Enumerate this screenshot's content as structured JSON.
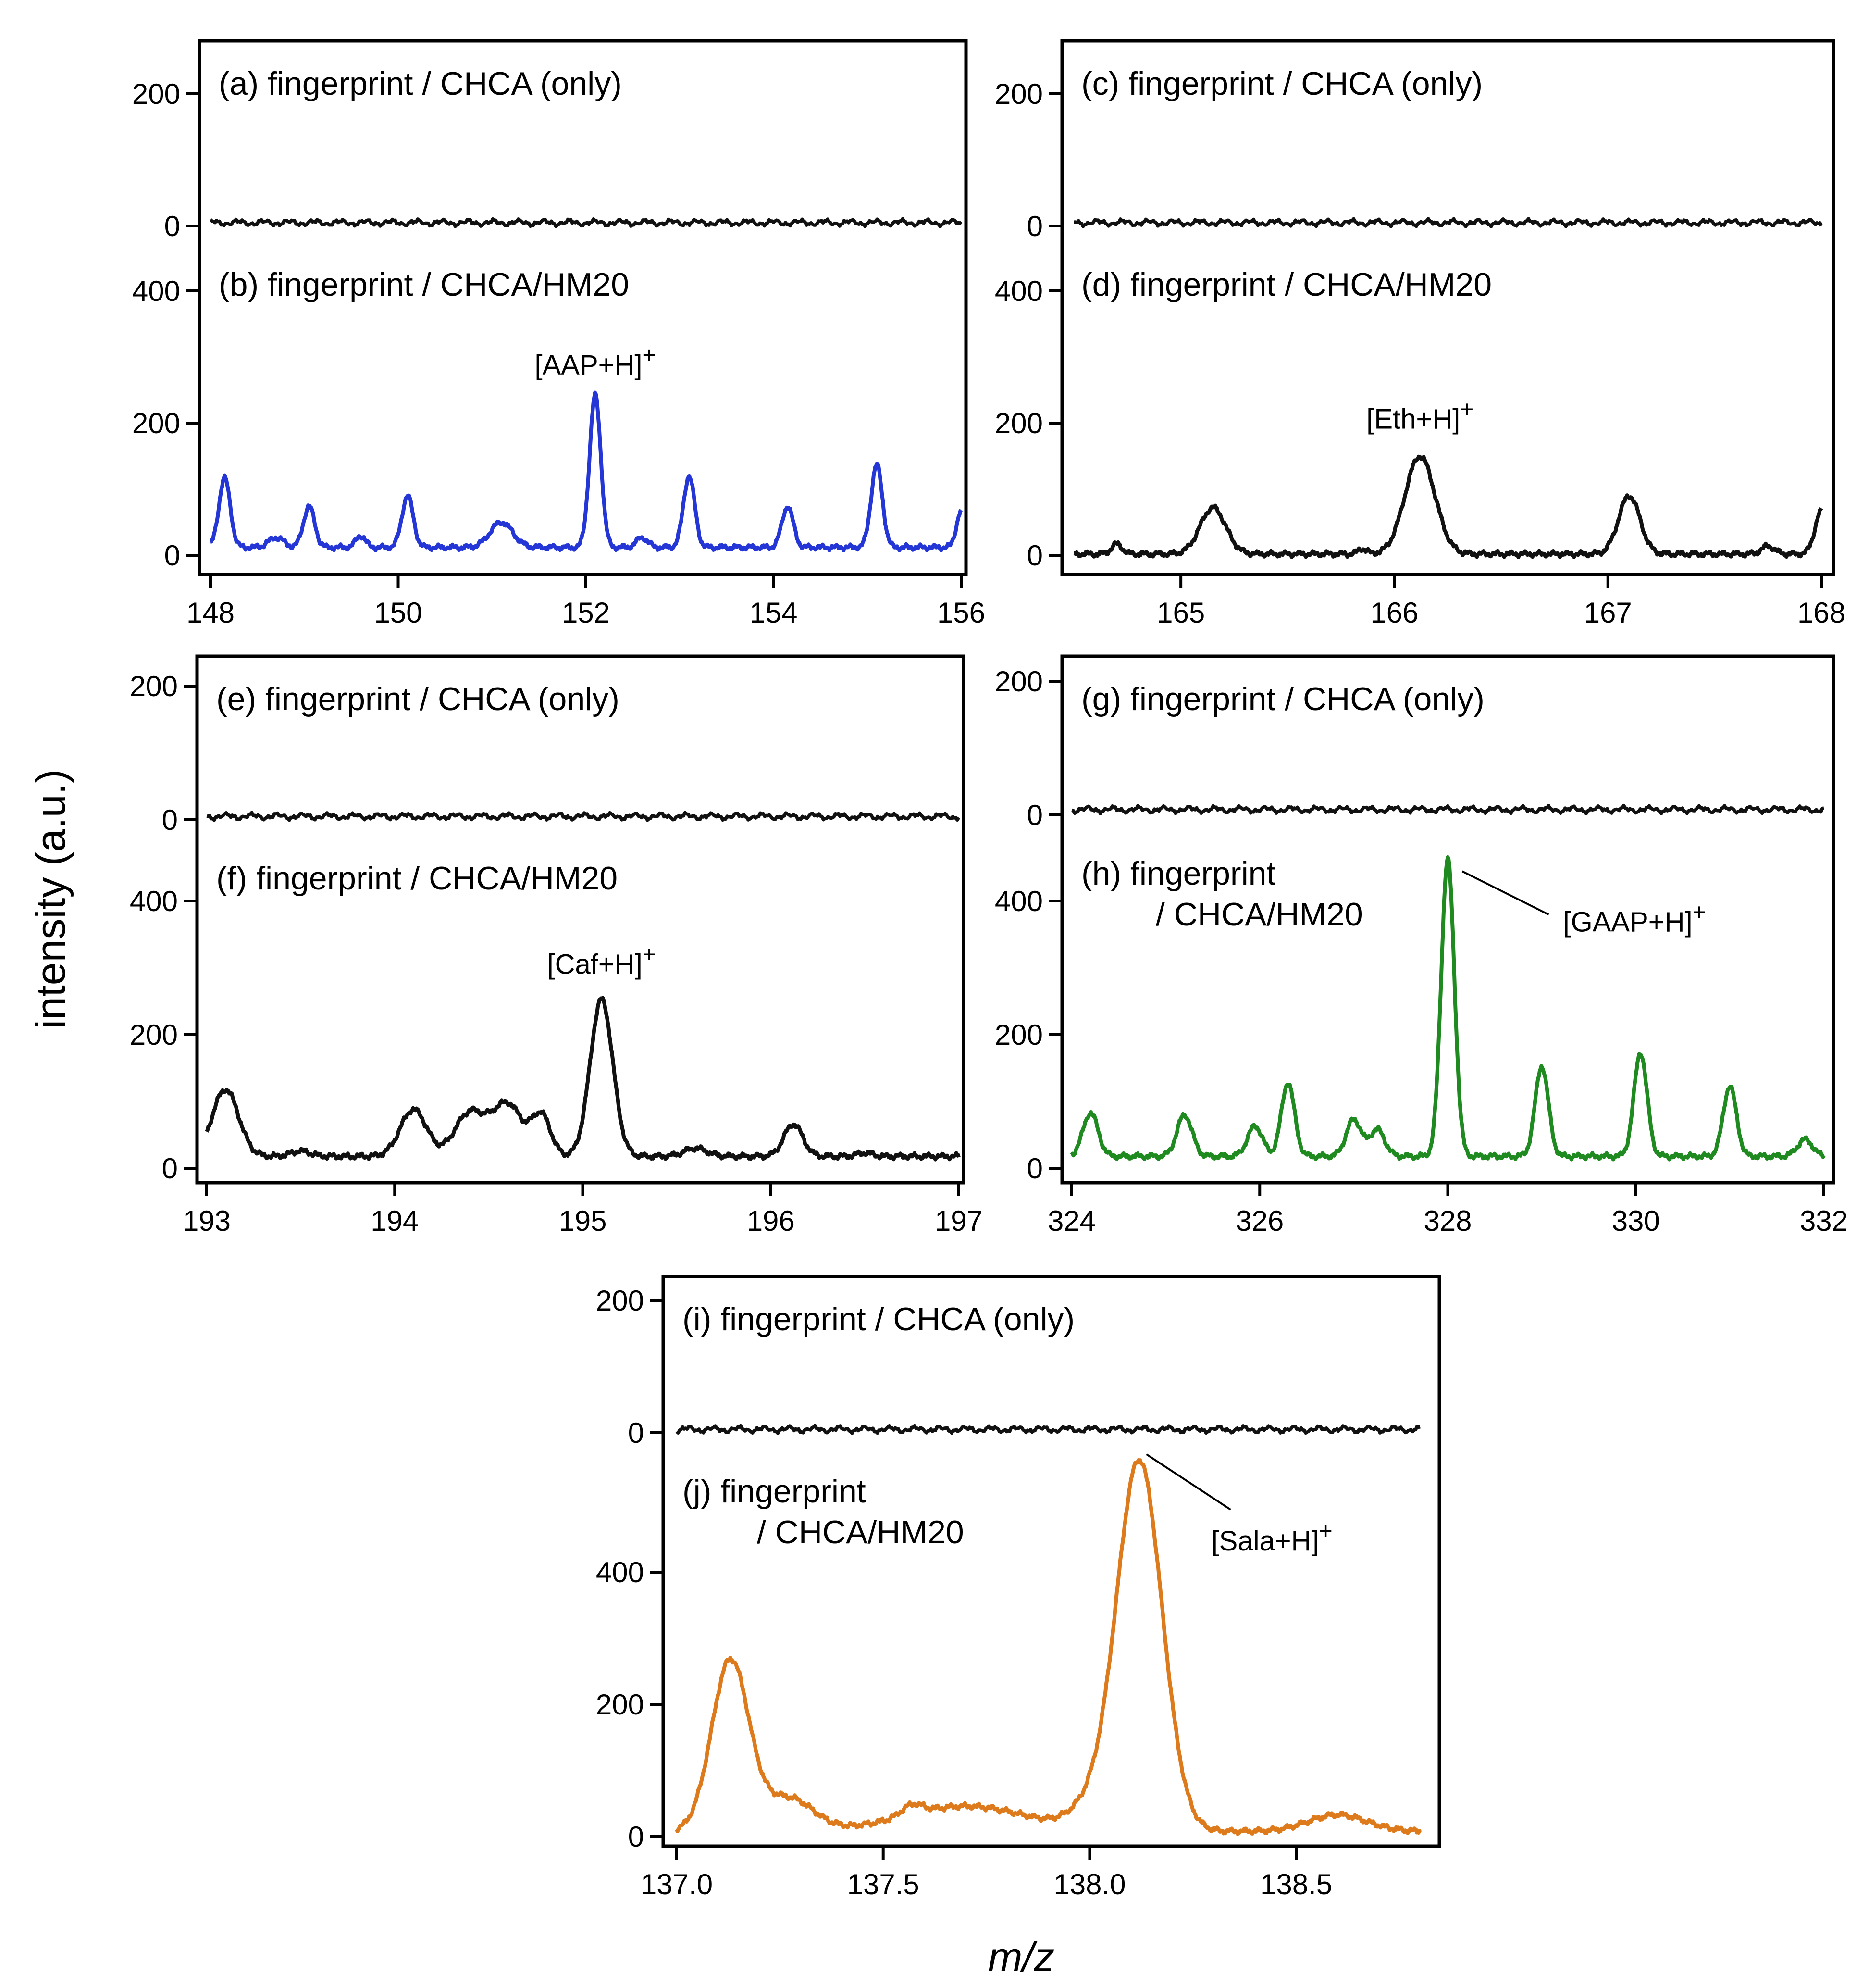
{
  "figure": {
    "ylabel": "intensity (a.u.)",
    "xlabel": "m/z"
  },
  "colors": {
    "blue": "#2436d6",
    "green": "#1f8a1f",
    "orange": "#dd7a1c",
    "black": "#111111"
  },
  "chart_data": [
    {
      "id": "AB",
      "type": "line",
      "xlim": [
        148,
        156
      ],
      "xticks": [
        "148",
        "150",
        "152",
        "154",
        "156"
      ],
      "xtick_values": [
        148,
        150,
        152,
        154,
        156
      ],
      "top": {
        "label": "(a) fingerprint / CHCA (only)",
        "ylim": [
          0,
          200
        ],
        "yticks": [
          0,
          200
        ],
        "color": "black",
        "baseline": 5
      },
      "bottom": {
        "label": "(b) fingerprint / CHCA/HM20",
        "ylim": [
          0,
          400
        ],
        "yticks": [
          0,
          200,
          400
        ],
        "color": "blue",
        "baseline": 12,
        "peaks": [
          [
            148.15,
            105,
            0.06
          ],
          [
            148.7,
            15,
            0.08
          ],
          [
            149.05,
            62,
            0.06
          ],
          [
            149.6,
            18,
            0.05
          ],
          [
            150.1,
            78,
            0.06
          ],
          [
            151.1,
            38,
            0.12
          ],
          [
            152.1,
            230,
            0.06
          ],
          [
            152.6,
            15,
            0.06
          ],
          [
            153.1,
            108,
            0.06
          ],
          [
            154.15,
            62,
            0.06
          ],
          [
            155.1,
            125,
            0.06
          ],
          [
            156.0,
            55,
            0.05
          ]
        ],
        "annotation": {
          "base": "[AAP+H]",
          "sup": "+",
          "x": 152.1,
          "y": 230
        }
      }
    },
    {
      "id": "CD",
      "type": "line",
      "xlim": [
        164.5,
        168
      ],
      "xticks": [
        "165",
        "166",
        "167",
        "168"
      ],
      "xtick_values": [
        165,
        166,
        167,
        168
      ],
      "top": {
        "label": "(c) fingerprint / CHCA (only)",
        "ylim": [
          0,
          200
        ],
        "yticks": [
          0,
          200
        ],
        "color": "black",
        "baseline": 5
      },
      "bottom": {
        "label": "(d) fingerprint / CHCA/HM20",
        "ylim": [
          0,
          400
        ],
        "yticks": [
          0,
          200,
          400
        ],
        "color": "black",
        "baseline": 2,
        "peaks": [
          [
            164.7,
            15,
            0.025
          ],
          [
            165.15,
            70,
            0.06
          ],
          [
            165.85,
            8,
            0.02
          ],
          [
            166.12,
            148,
            0.07
          ],
          [
            167.1,
            88,
            0.05
          ],
          [
            167.75,
            12,
            0.03
          ],
          [
            168.0,
            65,
            0.03
          ]
        ],
        "annotation": {
          "base": "[Eth+H]",
          "sup": "+",
          "x": 166.12,
          "y": 148
        }
      }
    },
    {
      "id": "EF",
      "type": "line",
      "xlim": [
        193,
        197
      ],
      "xticks": [
        "193",
        "194",
        "195",
        "196",
        "197"
      ],
      "xtick_values": [
        193,
        194,
        195,
        196,
        197
      ],
      "top": {
        "label": "(e) fingerprint / CHCA (only)",
        "ylim": [
          0,
          200
        ],
        "yticks": [
          0,
          200
        ],
        "color": "black",
        "baseline": 5
      },
      "bottom": {
        "label": "(f) fingerprint / CHCA/HM20",
        "ylim": [
          0,
          400
        ],
        "yticks": [
          0,
          200,
          400
        ],
        "color": "black",
        "baseline": 18,
        "peaks": [
          [
            193.1,
            100,
            0.07
          ],
          [
            193.5,
            8,
            0.05
          ],
          [
            194.1,
            70,
            0.07
          ],
          [
            194.4,
            65,
            0.08
          ],
          [
            194.6,
            78,
            0.08
          ],
          [
            194.78,
            60,
            0.05
          ],
          [
            195.1,
            235,
            0.06
          ],
          [
            195.6,
            12,
            0.06
          ],
          [
            196.12,
            48,
            0.05
          ],
          [
            196.5,
            5,
            0.04
          ]
        ],
        "annotation": {
          "base": "[Caf+H]",
          "sup": "+",
          "x": 195.1,
          "y": 248
        }
      }
    },
    {
      "id": "GH",
      "type": "line",
      "xlim": [
        324,
        332
      ],
      "xticks": [
        "324",
        "326",
        "328",
        "330",
        "332"
      ],
      "xtick_values": [
        324,
        326,
        328,
        330,
        332
      ],
      "top": {
        "label": "(g) fingerprint / CHCA (only)",
        "ylim": [
          0,
          200
        ],
        "yticks": [
          0,
          200
        ],
        "color": "black",
        "baseline": 8
      },
      "bottom": {
        "label": "(h) fingerprint",
        "label2": "/ CHCA/HM20",
        "ylim": [
          0,
          400
        ],
        "yticks": [
          0,
          200,
          400
        ],
        "color": "green",
        "baseline": 18,
        "peaks": [
          [
            324.2,
            65,
            0.08
          ],
          [
            325.2,
            62,
            0.08
          ],
          [
            325.95,
            45,
            0.08
          ],
          [
            326.3,
            110,
            0.07
          ],
          [
            327.0,
            55,
            0.08
          ],
          [
            327.25,
            40,
            0.08
          ],
          [
            328.0,
            445,
            0.07
          ],
          [
            329.0,
            135,
            0.07
          ],
          [
            330.05,
            155,
            0.07
          ],
          [
            331.0,
            105,
            0.07
          ],
          [
            331.8,
            25,
            0.08
          ]
        ],
        "annotation": {
          "base": "[GAAP+H]",
          "sup": "+",
          "x": 328.0,
          "y": 448
        }
      }
    },
    {
      "id": "IJ",
      "type": "line",
      "xlim": [
        137.0,
        138.8
      ],
      "xticks": [
        "137.0",
        "137.5",
        "138.0",
        "138.5"
      ],
      "xtick_values": [
        137.0,
        137.5,
        138.0,
        138.5
      ],
      "top": {
        "label": "(i) fingerprint / CHCA (only)",
        "ylim": [
          0,
          200
        ],
        "yticks": [
          0,
          200
        ],
        "color": "black",
        "baseline": 5
      },
      "bottom": {
        "label": "(j) fingerprint",
        "label2": "/ CHCA/HM20",
        "ylim": [
          0,
          400
        ],
        "yticks": [
          0,
          200,
          400
        ],
        "color": "orange",
        "baseline": 8,
        "peaks": [
          [
            137.13,
            258,
            0.045
          ],
          [
            137.27,
            50,
            0.06
          ],
          [
            137.57,
            15,
            0.025
          ],
          [
            137.7,
            38,
            0.15
          ],
          [
            138.12,
            560,
            0.055
          ],
          [
            138.0,
            30,
            0.05
          ],
          [
            138.6,
            25,
            0.07
          ]
        ],
        "annotation": {
          "base": "[Sala+H]",
          "sup": "+",
          "x": 138.12,
          "y": 560
        }
      }
    }
  ]
}
